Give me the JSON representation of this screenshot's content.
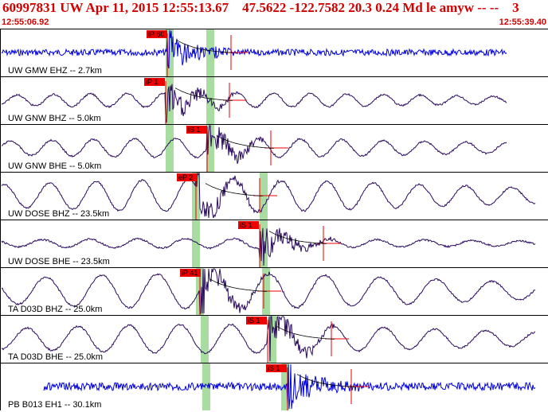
{
  "header": {
    "title": "60997831 UW Apr 11, 2015 12:55:13.67    47.5622 -122.7582 20.3 0.24 Md le amyw -- --    3",
    "start_time": "12:55:06.92",
    "end_time": "12:55:39.40"
  },
  "colors": {
    "title": "#d40000",
    "trace_blue": "#0000dd",
    "trace_purple": "#2a0a5e",
    "pick_box": "#ee0000",
    "window_green": "#a8dca0",
    "separator": "#000000"
  },
  "traces": [
    {
      "label": "UW GMW EHZ -- 2.7km",
      "color": "blue",
      "pick": "iP 60",
      "green": [
        212,
        263
      ],
      "style": "noise"
    },
    {
      "label": "UW GNW BHZ -- 5.0km",
      "color": "purple",
      "pick": "iP 1",
      "green": [
        212,
        263
      ],
      "style": "wave"
    },
    {
      "label": "UW GNW BHE -- 5.0km",
      "color": "purple",
      "pick": "iS 1",
      "green": [
        212,
        263
      ],
      "style": "wave"
    },
    {
      "label": "UW DOSE BHZ -- 23.5km",
      "color": "purple",
      "pick": "eP 2",
      "green": [
        245,
        330
      ],
      "style": "wave"
    },
    {
      "label": "UW DOSE BHE -- 23.5km",
      "color": "purple",
      "pick": "iS 1",
      "green": [
        245,
        330
      ],
      "style": "wave"
    },
    {
      "label": "TA D03D BHZ -- 25.0km",
      "color": "purple",
      "pick": "iP 41",
      "green": [
        250,
        333
      ],
      "style": "wave"
    },
    {
      "label": "TA D03D BHE -- 25.0km",
      "color": "purple",
      "pick": "iS 1",
      "green": [
        256,
        341
      ],
      "style": "wave"
    },
    {
      "label": "PB B013 EH1 -- 30.1km",
      "color": "blue",
      "pick": "iS 1",
      "green": [
        258,
        357
      ],
      "style": "noise"
    }
  ]
}
